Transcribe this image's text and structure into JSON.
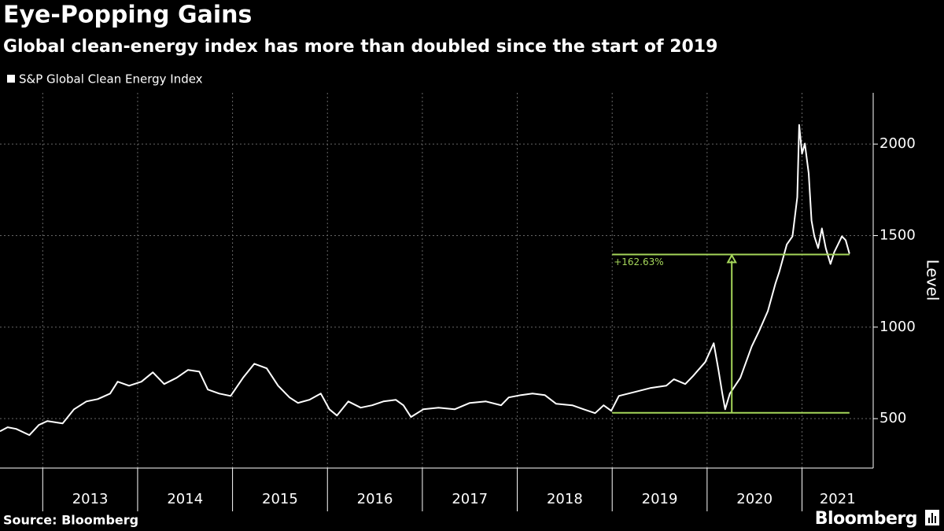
{
  "chart_data": {
    "type": "line",
    "title": "Eye-Popping Gains",
    "subtitle": "Global clean-energy index has more than doubled since the start of 2019",
    "y_label": "Level",
    "source": "Source: Bloomberg",
    "brand": "Bloomberg",
    "legend": "top-left",
    "grid": true,
    "xlim": [
      2012.55,
      2021.75
    ],
    "xticks": [
      2013,
      2014,
      2015,
      2016,
      2017,
      2018,
      2019,
      2020,
      2021
    ],
    "ylim": [
      230,
      2280
    ],
    "yticks": [
      500,
      1000,
      1500,
      2000
    ],
    "annotation": {
      "text": "+162.63%",
      "low": 532,
      "high": 1397,
      "x_start": 2019.0,
      "x_end": 2021.5,
      "arrow_x": 2020.26,
      "color": "#a5d65a"
    },
    "series": [
      {
        "name": "S&P Global Clean Energy Index",
        "color": "#ffffff",
        "x": [
          2012.55,
          2012.63,
          2012.72,
          2012.86,
          2012.96,
          2013.05,
          2013.21,
          2013.33,
          2013.46,
          2013.58,
          2013.71,
          2013.79,
          2013.91,
          2014.04,
          2014.16,
          2014.28,
          2014.41,
          2014.53,
          2014.65,
          2014.74,
          2014.86,
          2014.98,
          2015.11,
          2015.23,
          2015.36,
          2015.48,
          2015.6,
          2015.69,
          2015.81,
          2015.93,
          2016.02,
          2016.1,
          2016.22,
          2016.35,
          2016.47,
          2016.59,
          2016.72,
          2016.8,
          2016.88,
          2017.01,
          2017.17,
          2017.34,
          2017.5,
          2017.67,
          2017.83,
          2017.91,
          2018.04,
          2018.16,
          2018.29,
          2018.41,
          2018.58,
          2018.7,
          2018.82,
          2018.91,
          2018.99,
          2019.07,
          2019.24,
          2019.4,
          2019.57,
          2019.65,
          2019.77,
          2019.85,
          2019.98,
          2020.07,
          2020.12,
          2020.16,
          2020.19,
          2020.24,
          2020.35,
          2020.47,
          2020.55,
          2020.64,
          2020.72,
          2020.76,
          2020.84,
          2020.9,
          2020.95,
          2020.97,
          2021.0,
          2021.03,
          2021.07,
          2021.1,
          2021.13,
          2021.17,
          2021.21,
          2021.25,
          2021.3,
          2021.34,
          2021.38,
          2021.42,
          2021.46,
          2021.5
        ],
        "values": [
          431,
          453,
          444,
          410,
          466,
          487,
          474,
          551,
          594,
          607,
          637,
          702,
          680,
          702,
          753,
          689,
          723,
          766,
          757,
          659,
          637,
          624,
          723,
          800,
          775,
          680,
          616,
          586,
          603,
          637,
          551,
          517,
          594,
          560,
          573,
          594,
          603,
          573,
          509,
          551,
          560,
          551,
          586,
          594,
          573,
          616,
          629,
          637,
          629,
          581,
          573,
          551,
          530,
          573,
          543,
          624,
          646,
          667,
          680,
          715,
          689,
          732,
          809,
          912,
          766,
          637,
          551,
          637,
          723,
          895,
          981,
          1088,
          1238,
          1302,
          1452,
          1496,
          1710,
          2105,
          1947,
          2003,
          1840,
          1582,
          1496,
          1432,
          1539,
          1432,
          1345,
          1410,
          1453,
          1496,
          1475,
          1401
        ]
      }
    ]
  }
}
